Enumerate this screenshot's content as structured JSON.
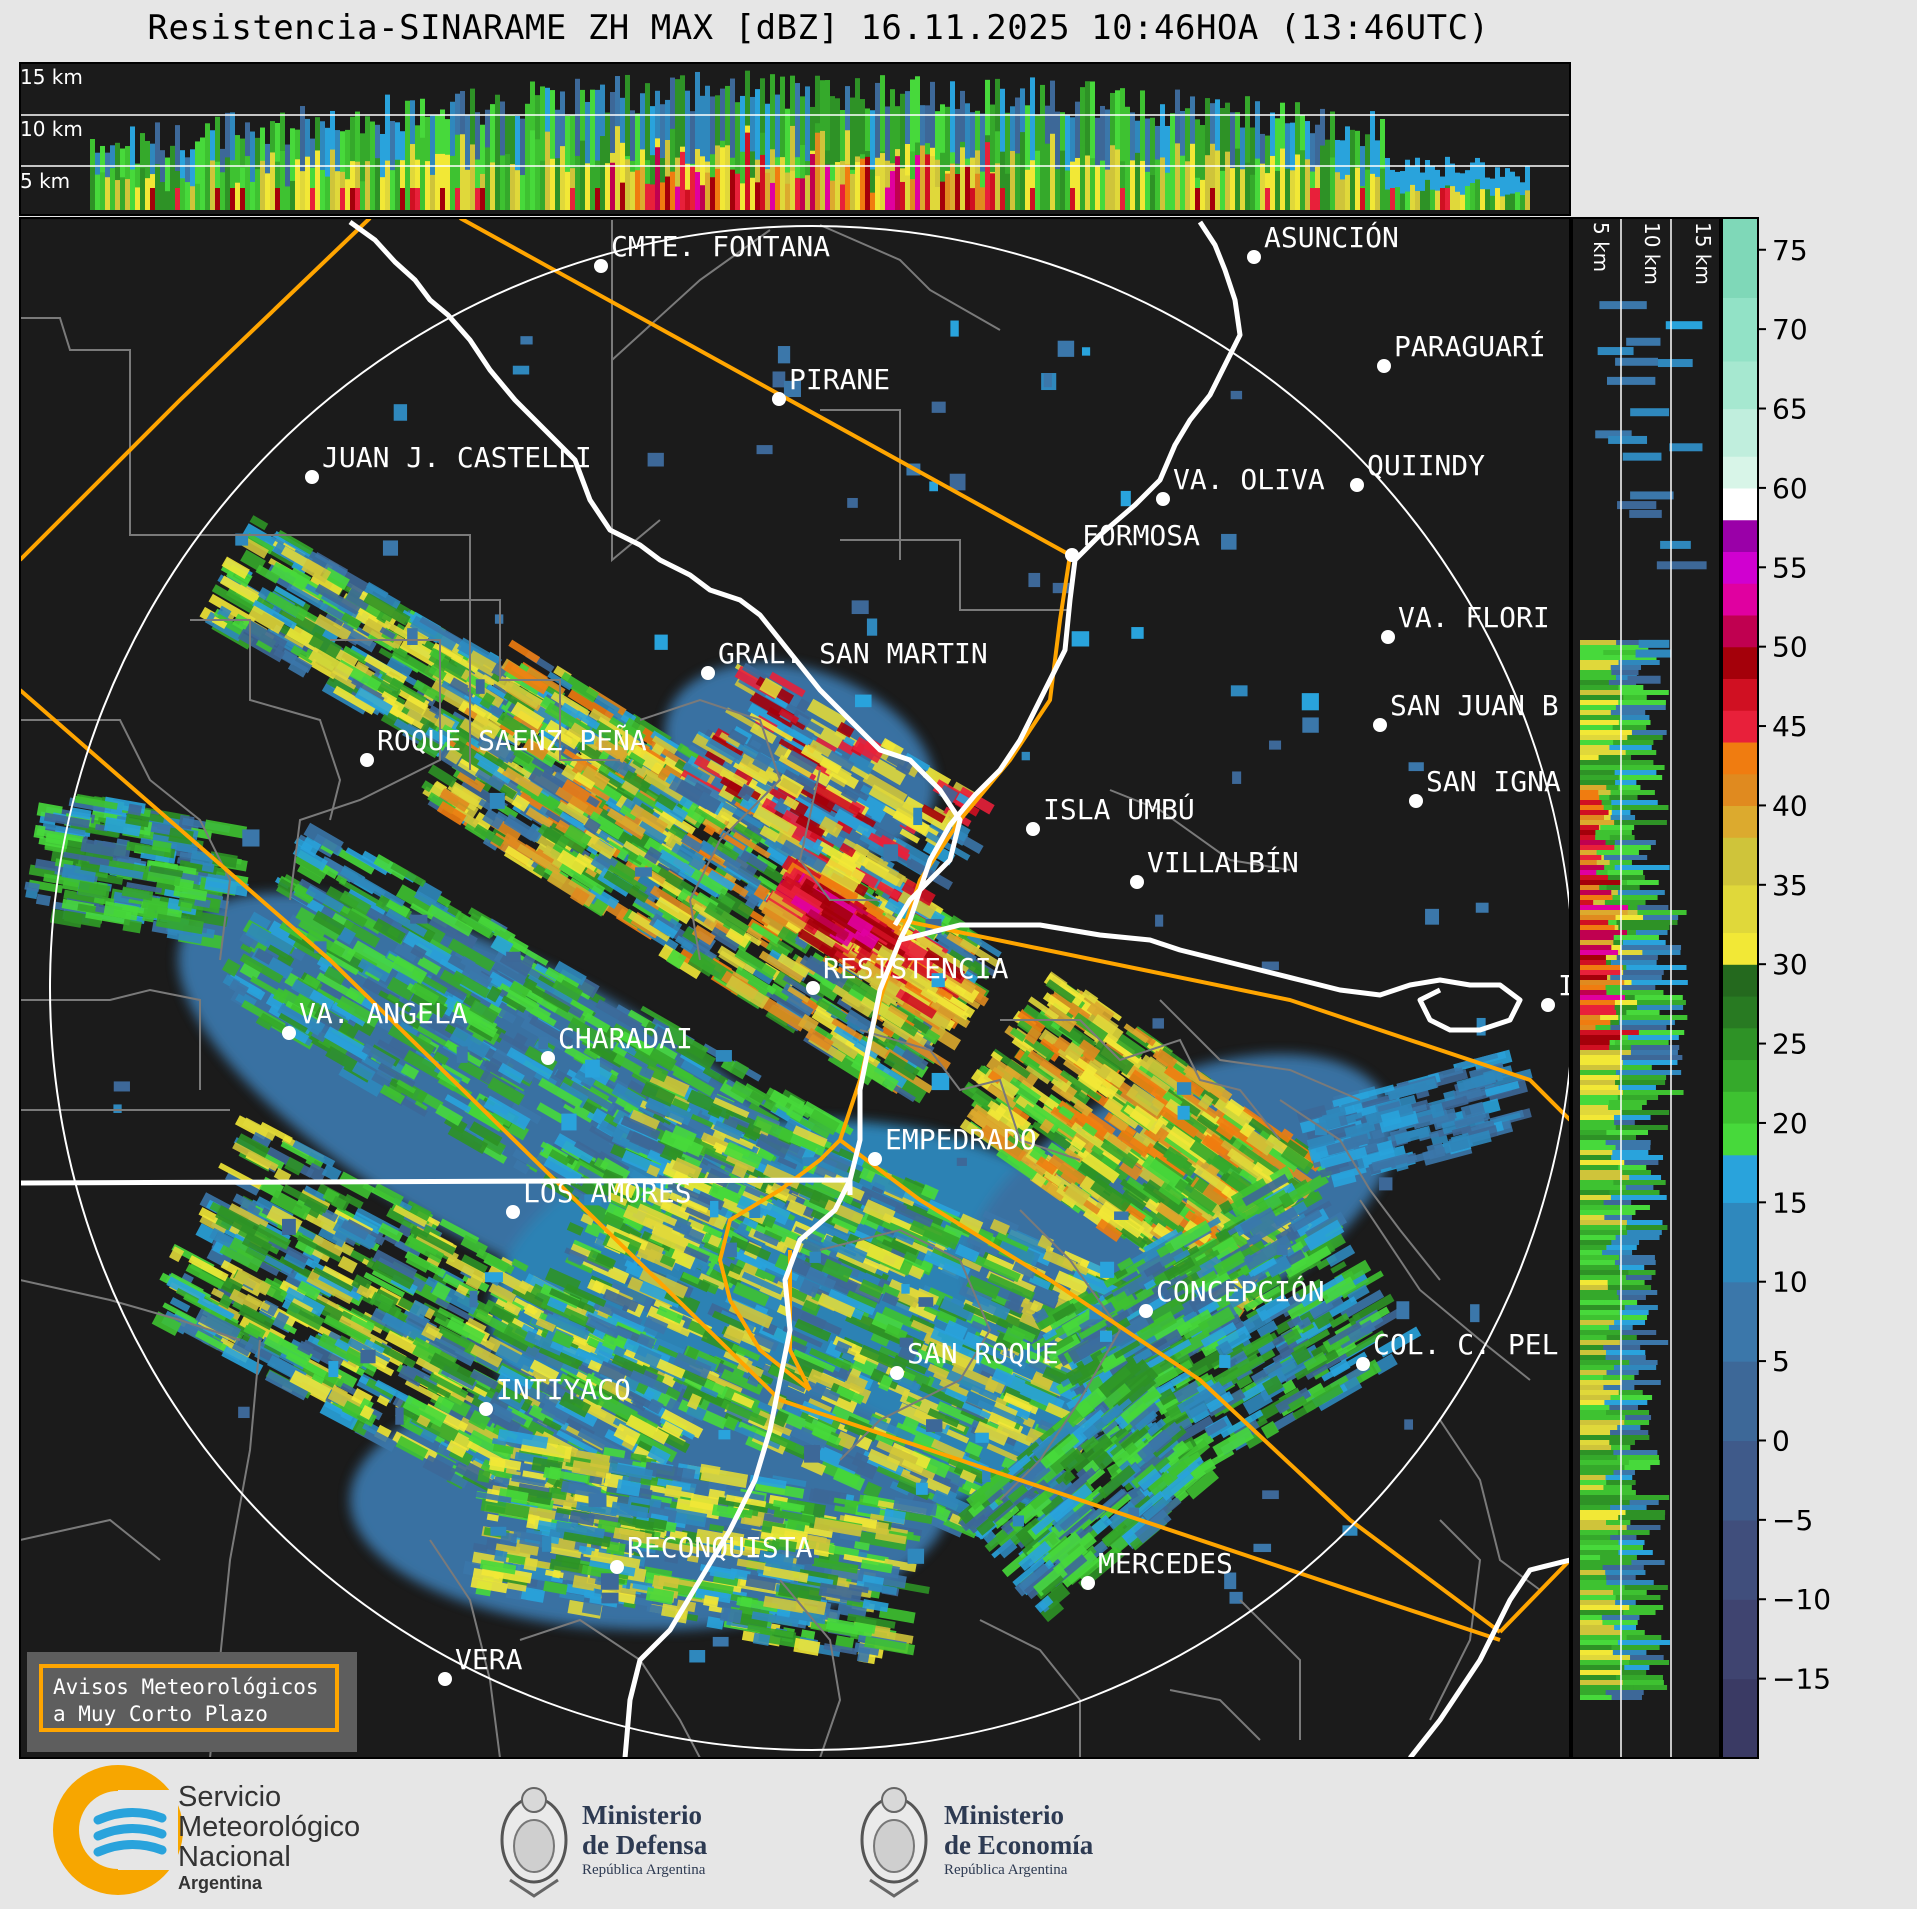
{
  "title": "Resistencia-SINARAME ZH MAX [dBZ] 16.11.2025 10:46HOA (13:46UTC)",
  "top_panel_labels": [
    "15 km",
    "10 km",
    "5 km"
  ],
  "side_panel_labels": [
    "5 km",
    "10 km",
    "15 km"
  ],
  "colorbar": {
    "ticks": [
      "75",
      "70",
      "65",
      "60",
      "55",
      "50",
      "45",
      "40",
      "35",
      "30",
      "25",
      "20",
      "15",
      "10",
      "5",
      "0",
      "−5",
      "−10",
      "−15"
    ],
    "range": [
      -20,
      77
    ],
    "unit": "dBZ"
  },
  "cities": [
    {
      "name": "CMTE. FONTANA"
    },
    {
      "name": "ASUNCIÓN"
    },
    {
      "name": "PARAGUARÍ"
    },
    {
      "name": "PIRANE"
    },
    {
      "name": "JUAN J. CASTELLI"
    },
    {
      "name": "VA. OLIVA"
    },
    {
      "name": "QUIINDY"
    },
    {
      "name": "FORMOSA"
    },
    {
      "name": "VA. FLORI"
    },
    {
      "name": "GRAL. SAN MARTIN"
    },
    {
      "name": "SAN JUAN B"
    },
    {
      "name": "ROQUE SAENZ PEÑA"
    },
    {
      "name": "SAN IGNA"
    },
    {
      "name": "ISLA UMBÚ"
    },
    {
      "name": "VILLALBÍN"
    },
    {
      "name": "RESISTENCIA"
    },
    {
      "name": "VA. ANGELA"
    },
    {
      "name": "CHARADAI"
    },
    {
      "name": "IT"
    },
    {
      "name": "EMPEDRADO"
    },
    {
      "name": "LOS AMORES"
    },
    {
      "name": "CONCEPCIÓN"
    },
    {
      "name": "SAN ROQUE"
    },
    {
      "name": "COL. C. PEL"
    },
    {
      "name": "INTIYACO"
    },
    {
      "name": "RECONQUISTA"
    },
    {
      "name": "MERCEDES"
    },
    {
      "name": "VERA"
    }
  ],
  "notice": {
    "line1": "Avisos Meteorológicos",
    "line2": "a Muy Corto Plazo"
  },
  "footer": {
    "smn": {
      "line1": "Servicio",
      "line2": "Meteorológico",
      "line3": "Nacional",
      "line4": "Argentina"
    },
    "defensa": {
      "line1": "Ministerio",
      "line2": "de Defensa",
      "line3": "República Argentina"
    },
    "economia": {
      "line1": "Ministerio",
      "line2": "de Economía",
      "line3": "República Argentina"
    }
  },
  "colors": {
    "background": "#e6e6e6",
    "map": "#1b1b1b",
    "borders": "#ffa500",
    "rivers": "#ffffff",
    "range_ring": "#ffffff"
  }
}
